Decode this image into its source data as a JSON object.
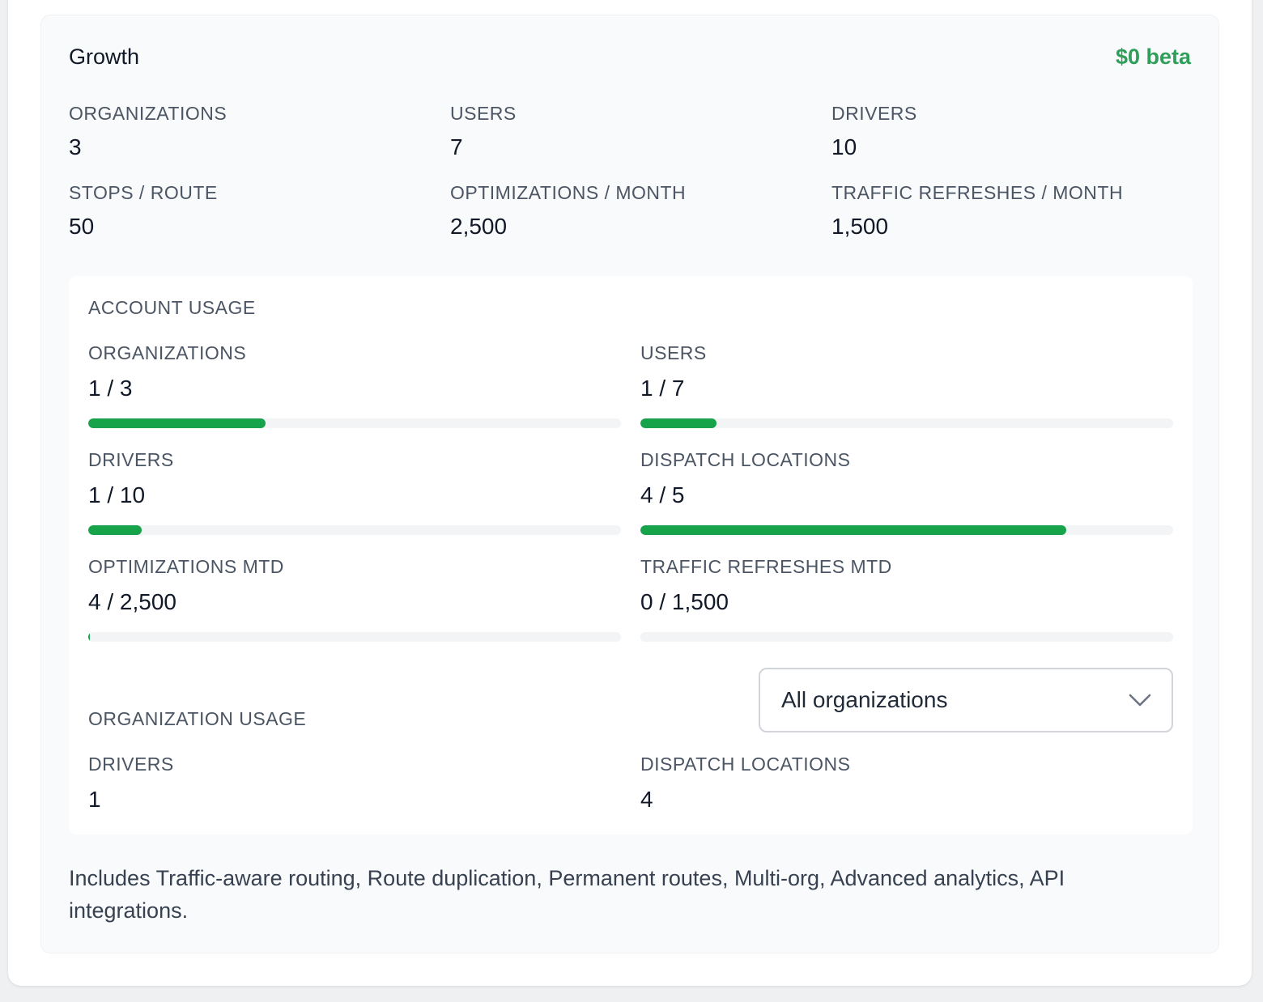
{
  "plan": {
    "name": "Growth",
    "price": "$0 beta",
    "price_color": "#2f9e5b"
  },
  "limits": [
    {
      "label": "ORGANIZATIONS",
      "value": "3"
    },
    {
      "label": "USERS",
      "value": "7"
    },
    {
      "label": "DRIVERS",
      "value": "10"
    },
    {
      "label": "STOPS / ROUTE",
      "value": "50"
    },
    {
      "label": "OPTIMIZATIONS / MONTH",
      "value": "2,500"
    },
    {
      "label": "TRAFFIC REFRESHES / MONTH",
      "value": "1,500"
    }
  ],
  "account_usage": {
    "title": "ACCOUNT USAGE",
    "bar_color": "#16a34a",
    "items": [
      {
        "label": "ORGANIZATIONS",
        "value": "1 / 3",
        "fraction": 0.3333
      },
      {
        "label": "USERS",
        "value": "1 / 7",
        "fraction": 0.1429
      },
      {
        "label": "DRIVERS",
        "value": "1 / 10",
        "fraction": 0.1
      },
      {
        "label": "DISPATCH LOCATIONS",
        "value": "4 / 5",
        "fraction": 0.8
      },
      {
        "label": "OPTIMIZATIONS MTD",
        "value": "4 / 2,500",
        "fraction": 0.0016
      },
      {
        "label": "TRAFFIC REFRESHES MTD",
        "value": "0 / 1,500",
        "fraction": 0
      }
    ]
  },
  "organization_usage": {
    "title": "ORGANIZATION USAGE",
    "select": {
      "value": "All organizations",
      "icon": "chevron-down-icon"
    },
    "items": [
      {
        "label": "DRIVERS",
        "value": "1"
      },
      {
        "label": "DISPATCH LOCATIONS",
        "value": "4"
      }
    ]
  },
  "features": "Includes Traffic-aware routing, Route duplication, Permanent routes, Multi-org, Advanced analytics, API integrations."
}
